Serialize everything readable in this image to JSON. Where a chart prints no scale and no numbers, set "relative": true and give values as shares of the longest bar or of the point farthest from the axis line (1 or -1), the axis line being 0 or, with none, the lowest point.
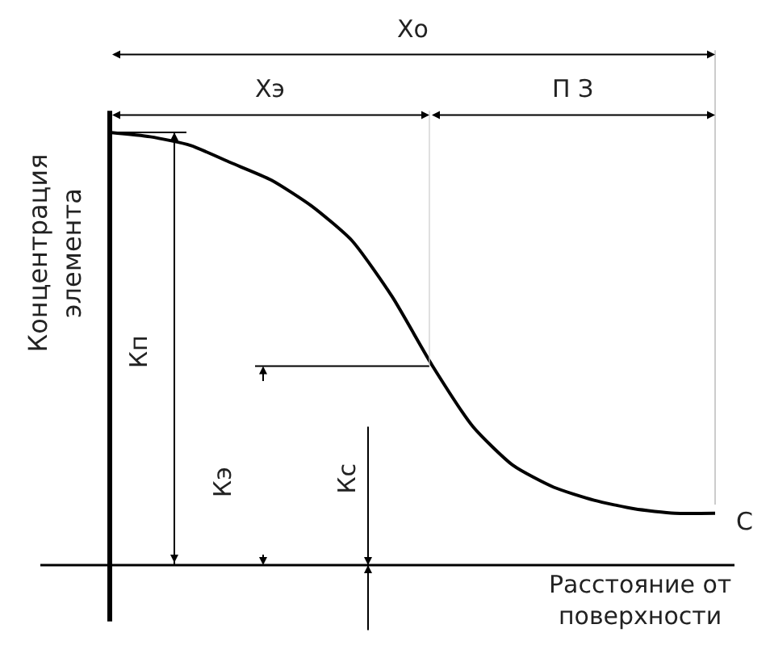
{
  "chart_data": {
    "type": "line",
    "relative": true,
    "xlabel": "Расстояние от поверхности",
    "ylabel": "Концентрация элемента",
    "categories": [
      null,
      null,
      null,
      null,
      null,
      null,
      null,
      null,
      null,
      null,
      null,
      null,
      null,
      null,
      null,
      null
    ],
    "series": [
      {
        "color": "#000000",
        "values": [
          1,
          0.99,
          0.97,
          0.93,
          0.89,
          0.83,
          0.75,
          0.62,
          0.46,
          0.32,
          0.23,
          0.18,
          0.15,
          0.13,
          0.12,
          0.12
        ]
      }
    ],
    "annotations": [
      "Xо",
      "Xэ",
      "П З",
      "Кп",
      "Кэ",
      "Кс",
      "С"
    ]
  }
}
